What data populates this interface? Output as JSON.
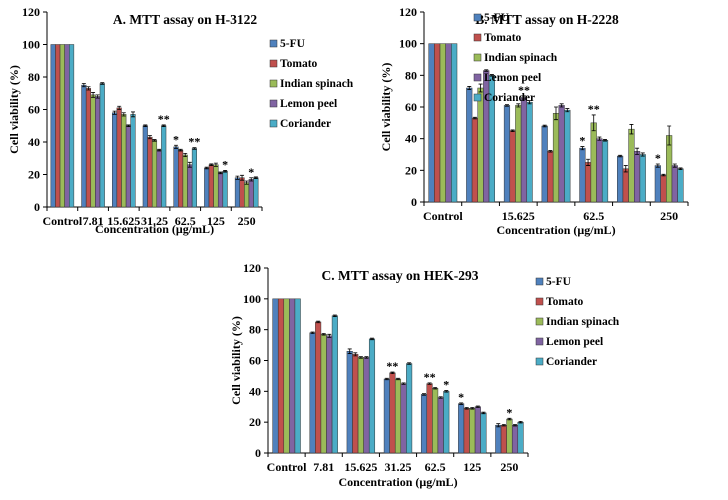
{
  "colors": {
    "5-FU": "#4f81bd",
    "Tomato": "#c0504d",
    "Indian spinach": "#9bbb59",
    "Lemon peel": "#8064a2",
    "Coriander": "#4bacc6"
  },
  "chart_data": [
    {
      "type": "bar",
      "title": "A. MTT assay on H-3122",
      "xlabel": "Concentration (μg/mL)",
      "ylabel": "Cell viability (%)",
      "ylim": [
        0,
        120
      ],
      "yticks": [
        "0",
        "20",
        "40",
        "60",
        "80",
        "100",
        "120"
      ],
      "legend_position": "right",
      "categories": [
        "Control",
        "7.81",
        "15.625",
        "31.25",
        "62.5",
        "125",
        "250"
      ],
      "series": [
        {
          "name": "5-FU",
          "values": [
            100,
            75,
            58,
            50,
            37,
            24,
            18
          ],
          "errors": [
            0,
            1,
            1,
            0.5,
            1,
            0.5,
            1
          ]
        },
        {
          "name": "Tomato",
          "values": [
            100,
            73,
            61,
            43,
            35,
            26,
            18
          ],
          "errors": [
            0,
            1,
            1,
            1,
            0.5,
            0.5,
            1.5
          ]
        },
        {
          "name": "Indian spinach",
          "values": [
            100,
            69,
            57,
            41,
            32,
            26,
            15
          ],
          "errors": [
            0,
            1.5,
            1,
            0.5,
            1,
            1,
            1
          ]
        },
        {
          "name": "Lemon peel",
          "values": [
            100,
            68,
            50,
            35,
            26,
            21,
            17
          ],
          "errors": [
            0,
            1,
            0.5,
            0.5,
            1.5,
            0.5,
            1
          ]
        },
        {
          "name": "Coriander",
          "values": [
            100,
            76,
            57,
            50,
            36,
            22,
            18
          ],
          "errors": [
            0,
            0.5,
            1.5,
            0.5,
            0.5,
            0.5,
            0.5
          ]
        }
      ],
      "annotations": [
        {
          "text": "**",
          "category": "31.25",
          "series": "Coriander"
        },
        {
          "text": "*",
          "category": "62.5",
          "series": "5-FU"
        },
        {
          "text": "**",
          "category": "62.5",
          "series": "Coriander"
        },
        {
          "text": "*",
          "category": "125",
          "series": "Coriander"
        },
        {
          "text": "*",
          "category": "250",
          "series": "Lemon peel"
        }
      ],
      "annotation_rows": [
        1,
        1,
        1,
        1,
        1
      ]
    },
    {
      "type": "bar",
      "title": "B. MTT assay on H-2228",
      "xlabel": "Concentration (μg/mL)",
      "ylabel": "Cell viability (%)",
      "ylim": [
        0,
        120
      ],
      "yticks": [
        "0",
        "20",
        "40",
        "60",
        "80",
        "100",
        "120"
      ],
      "legend_position": "right",
      "categories": [
        "Control",
        "",
        "15.625",
        "",
        "62.5",
        "",
        "250"
      ],
      "series": [
        {
          "name": "5-FU",
          "values": [
            100,
            72,
            61,
            48,
            34,
            29,
            23
          ],
          "errors": [
            0,
            1,
            0.5,
            0.5,
            1,
            0.5,
            1
          ]
        },
        {
          "name": "Tomato",
          "values": [
            100,
            53,
            45,
            32,
            25,
            21,
            17
          ],
          "errors": [
            0,
            0.5,
            0.5,
            0.5,
            2,
            2,
            0.5
          ]
        },
        {
          "name": "Indian spinach",
          "values": [
            100,
            72,
            61,
            56,
            50,
            46,
            42
          ],
          "errors": [
            0,
            2.5,
            1,
            4,
            5,
            3,
            6
          ]
        },
        {
          "name": "Lemon peel",
          "values": [
            100,
            83,
            66,
            61,
            40,
            32,
            23
          ],
          "errors": [
            0,
            0.5,
            1,
            1,
            1,
            2,
            1
          ]
        },
        {
          "name": "Coriander",
          "values": [
            100,
            80,
            63,
            58,
            39,
            30,
            21
          ],
          "errors": [
            0,
            0.5,
            1,
            1,
            0.5,
            1,
            0.5
          ]
        }
      ],
      "annotations": [
        {
          "text": "**",
          "category": "15.625",
          "series": "Lemon peel"
        },
        {
          "text": "*",
          "category": "62.5",
          "series": "5-FU"
        },
        {
          "text": "**",
          "category": "62.5",
          "series": "Indian spinach"
        },
        {
          "text": "*",
          "category": "250",
          "series": "5-FU"
        }
      ],
      "annotation_rows": [
        1,
        5,
        1,
        1
      ]
    },
    {
      "type": "bar",
      "title": "C. MTT assay on HEK-293",
      "xlabel": "Concentration (μg/mL)",
      "ylabel": "Cell viability (%)",
      "ylim": [
        0,
        120
      ],
      "yticks": [
        "0",
        "20",
        "40",
        "60",
        "80",
        "100",
        "120"
      ],
      "legend_position": "right",
      "categories": [
        "Control",
        "7.81",
        "15.625",
        "31.25",
        "62.5",
        "125",
        "250"
      ],
      "series": [
        {
          "name": "5-FU",
          "values": [
            100,
            78,
            66,
            48,
            38,
            32,
            18
          ],
          "errors": [
            0,
            0.5,
            1.5,
            0.5,
            0.5,
            0.5,
            1
          ]
        },
        {
          "name": "Tomato",
          "values": [
            100,
            85,
            64,
            52,
            45,
            29,
            18
          ],
          "errors": [
            0,
            0.5,
            1,
            0.5,
            0.5,
            0.5,
            0.5
          ]
        },
        {
          "name": "Indian spinach",
          "values": [
            100,
            77,
            62,
            48,
            42,
            29,
            22
          ],
          "errors": [
            0,
            0.5,
            0.5,
            0.5,
            0.5,
            0.5,
            0.5
          ]
        },
        {
          "name": "Lemon peel",
          "values": [
            100,
            76,
            62,
            45,
            36,
            30,
            18
          ],
          "errors": [
            0,
            1,
            0.5,
            0.5,
            0.5,
            0.5,
            0.5
          ]
        },
        {
          "name": "Coriander",
          "values": [
            100,
            89,
            74,
            58,
            40,
            26,
            20
          ],
          "errors": [
            0,
            0.5,
            0.5,
            0.5,
            0.5,
            0.5,
            0.5
          ]
        }
      ],
      "annotations": [
        {
          "text": "**",
          "category": "31.25",
          "series": "Tomato"
        },
        {
          "text": "**",
          "category": "62.5",
          "series": "Tomato"
        },
        {
          "text": "*",
          "category": "62.5",
          "series": "Coriander"
        },
        {
          "text": "*",
          "category": "125",
          "series": "5-FU"
        },
        {
          "text": "*",
          "category": "250",
          "series": "Indian spinach"
        }
      ],
      "annotation_rows": [
        1,
        1,
        1,
        1,
        1
      ]
    }
  ]
}
